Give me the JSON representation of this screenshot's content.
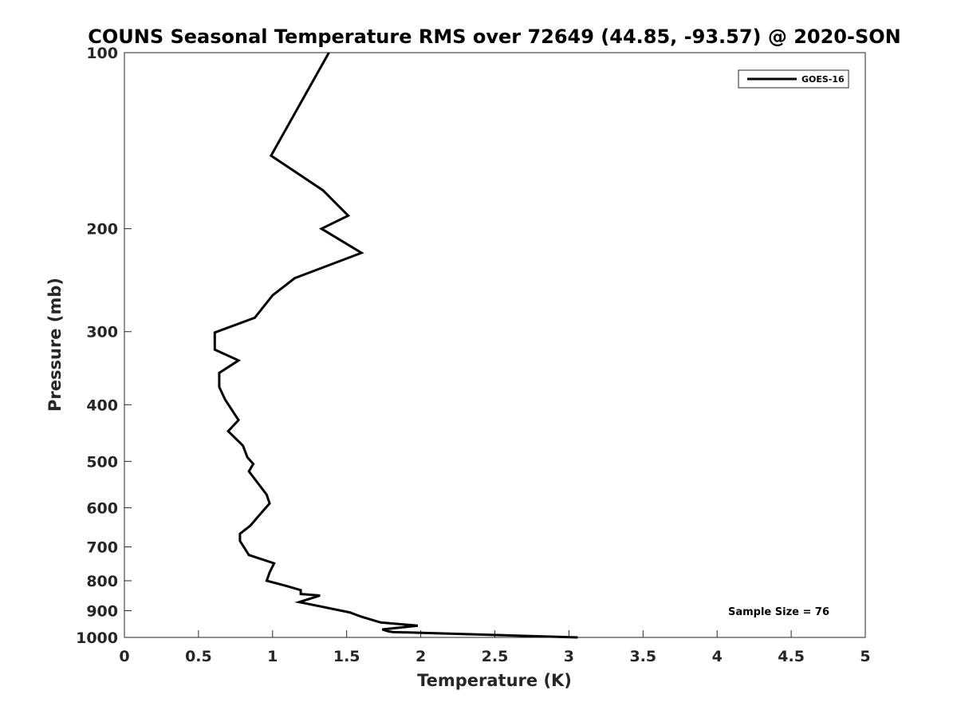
{
  "chart_data": {
    "type": "line",
    "title": "COUNS Seasonal Temperature RMS over 72649 (44.85, -93.57) @ 2020-SON",
    "xlabel": "Temperature (K)",
    "ylabel": "Pressure (mb)",
    "xlim": [
      0,
      5
    ],
    "ylim": [
      100,
      1000
    ],
    "y_scale": "log",
    "y_reversed": true,
    "grid": false,
    "x_ticks": [
      "0",
      "0.5",
      "1",
      "1.5",
      "2",
      "2.5",
      "3",
      "3.5",
      "4",
      "4.5",
      "5"
    ],
    "x_tick_values": [
      0,
      0.5,
      1,
      1.5,
      2,
      2.5,
      3,
      3.5,
      4,
      4.5,
      5
    ],
    "y_ticks": [
      "100",
      "200",
      "300",
      "400",
      "500",
      "600",
      "700",
      "800",
      "900",
      "1000"
    ],
    "y_tick_values": [
      100,
      200,
      300,
      400,
      500,
      600,
      700,
      800,
      900,
      1000
    ],
    "legend": {
      "position": "top-right",
      "entries": [
        "GOES-16"
      ]
    },
    "annotation": "Sample Size = 76",
    "series": [
      {
        "name": "GOES-16",
        "color": "#000000",
        "x": [
          1.38,
          0.99,
          1.34,
          1.51,
          1.33,
          1.6,
          1.15,
          1.0,
          0.88,
          0.61,
          0.61,
          0.77,
          0.64,
          0.64,
          0.68,
          0.77,
          0.7,
          0.8,
          0.83,
          0.87,
          0.84,
          0.96,
          0.98,
          0.92,
          0.85,
          0.78,
          0.78,
          0.84,
          1.01,
          0.98,
          0.96,
          1.09,
          1.19,
          1.19,
          1.32,
          1.18,
          1.52,
          1.6,
          1.73,
          1.98,
          1.74,
          1.78,
          1.81,
          3.06
        ],
        "y": [
          100,
          150,
          172,
          190,
          200,
          220,
          243,
          260,
          284,
          301,
          322,
          336,
          353,
          373,
          392,
          425,
          444,
          470,
          492,
          505,
          520,
          570,
          590,
          614,
          644,
          665,
          684,
          723,
          747,
          774,
          800,
          816,
          830,
          843,
          848,
          870,
          906,
          922,
          943,
          955,
          969,
          976,
          979,
          1000
        ]
      }
    ]
  }
}
